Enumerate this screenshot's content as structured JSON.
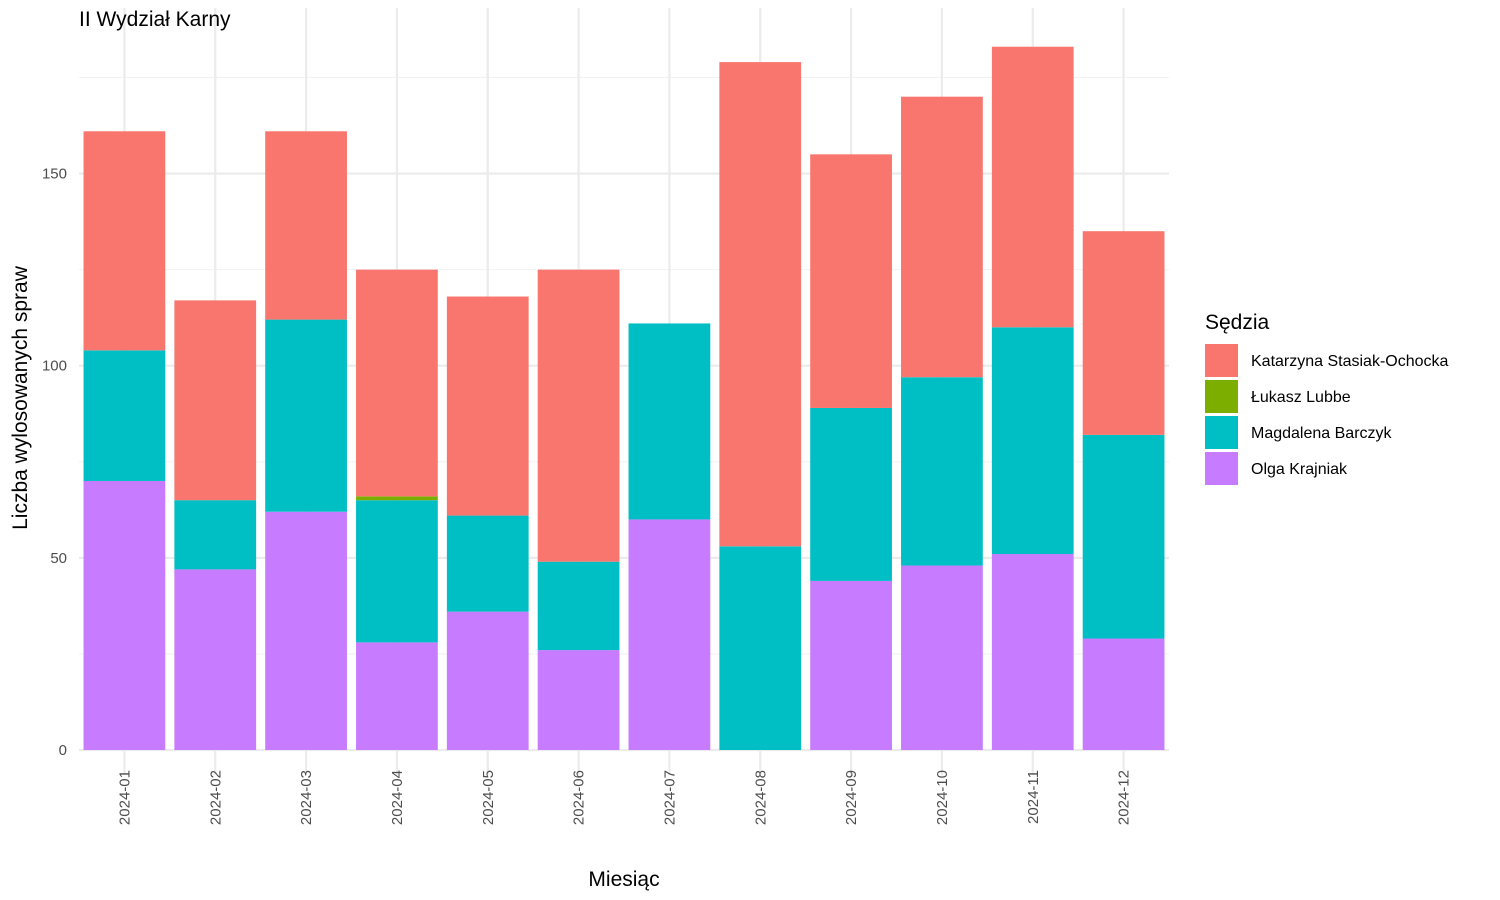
{
  "chart_data": {
    "type": "bar",
    "stacked": true,
    "title": "II Wydział Karny",
    "xlabel": "Miesiąc",
    "ylabel": "Liczba wylosowanych spraw",
    "categories": [
      "2024-01",
      "2024-02",
      "2024-03",
      "2024-04",
      "2024-05",
      "2024-06",
      "2024-07",
      "2024-08",
      "2024-09",
      "2024-10",
      "2024-11",
      "2024-12"
    ],
    "ylim": [
      0,
      190
    ],
    "yticks": [
      0,
      50,
      100,
      150
    ],
    "grid": true,
    "legend_title": "Sędzia",
    "legend_position": "right",
    "series": [
      {
        "name": "Olga Krajniak",
        "color": "#C77CFF",
        "values": [
          70,
          47,
          62,
          28,
          36,
          26,
          60,
          0,
          44,
          48,
          51,
          29
        ]
      },
      {
        "name": "Magdalena Barczyk",
        "color": "#00BFC4",
        "values": [
          34,
          18,
          50,
          37,
          25,
          23,
          51,
          53,
          45,
          49,
          59,
          53
        ]
      },
      {
        "name": "Łukasz Lubbe",
        "color": "#7CAE00",
        "values": [
          0,
          0,
          0,
          1,
          0,
          0,
          0,
          0,
          0,
          0,
          0,
          0
        ]
      },
      {
        "name": "Katarzyna Stasiak-Ochocka",
        "color": "#F8766D",
        "values": [
          57,
          52,
          49,
          59,
          57,
          76,
          0,
          126,
          66,
          73,
          73,
          53
        ]
      }
    ],
    "legend_order": [
      "Katarzyna Stasiak-Ochocka",
      "Łukasz Lubbe",
      "Magdalena Barczyk",
      "Olga Krajniak"
    ]
  }
}
